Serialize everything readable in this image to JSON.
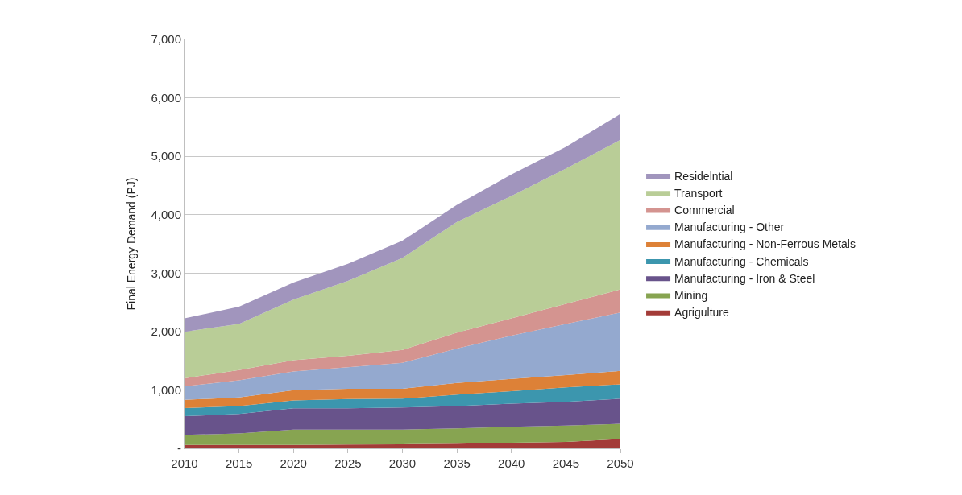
{
  "chart_data": {
    "type": "area",
    "stacked": true,
    "ylabel": "Final Energy Demand (PJ)",
    "x": [
      2010,
      2015,
      2020,
      2025,
      2030,
      2035,
      2040,
      2045,
      2050
    ],
    "series": [
      {
        "name": "Agrigulture",
        "color": "#a33b38",
        "values": [
          60,
          60,
          60,
          65,
          70,
          80,
          95,
          110,
          160
        ]
      },
      {
        "name": "Mining",
        "color": "#87a451",
        "values": [
          170,
          195,
          260,
          255,
          250,
          260,
          275,
          280,
          260
        ]
      },
      {
        "name": "Manufacturing - Iron & Steel",
        "color": "#68538b",
        "values": [
          320,
          335,
          365,
          365,
          380,
          385,
          395,
          405,
          430
        ]
      },
      {
        "name": "Manufacturing - Chemicals",
        "color": "#3c96ae",
        "values": [
          140,
          135,
          135,
          160,
          150,
          195,
          215,
          250,
          245
        ]
      },
      {
        "name": "Manufacturing - Non-Ferrous Metals",
        "color": "#dd8137",
        "values": [
          140,
          145,
          175,
          175,
          170,
          200,
          210,
          210,
          230
        ]
      },
      {
        "name": "Manufacturing - Other",
        "color": "#94a9cf",
        "values": [
          230,
          295,
          320,
          370,
          445,
          590,
          740,
          875,
          1000
        ]
      },
      {
        "name": "Commercial",
        "color": "#d49490",
        "values": [
          140,
          175,
          195,
          195,
          220,
          270,
          295,
          345,
          395
        ]
      },
      {
        "name": "Transport",
        "color": "#b9cd97",
        "values": [
          795,
          790,
          1035,
          1280,
          1575,
          1895,
          2095,
          2315,
          2560
        ]
      },
      {
        "name": "Residelntial",
        "color": "#a195bd",
        "values": [
          230,
          295,
          295,
          295,
          295,
          295,
          370,
          370,
          445
        ]
      }
    ],
    "xlim": [
      2010,
      2050
    ],
    "xticks": [
      2010,
      2015,
      2020,
      2025,
      2030,
      2035,
      2040,
      2045,
      2050
    ],
    "ylim": [
      0,
      7000
    ],
    "yticks": [
      {
        "value": 0,
        "label": "-"
      },
      {
        "value": 1000,
        "label": "1,000"
      },
      {
        "value": 2000,
        "label": "2,000"
      },
      {
        "value": 3000,
        "label": "3,000"
      },
      {
        "value": 4000,
        "label": "4,000"
      },
      {
        "value": 5000,
        "label": "5,000"
      },
      {
        "value": 6000,
        "label": "6,000"
      },
      {
        "value": 7000,
        "label": "7,000"
      }
    ],
    "grid": "y",
    "legend": "right"
  }
}
